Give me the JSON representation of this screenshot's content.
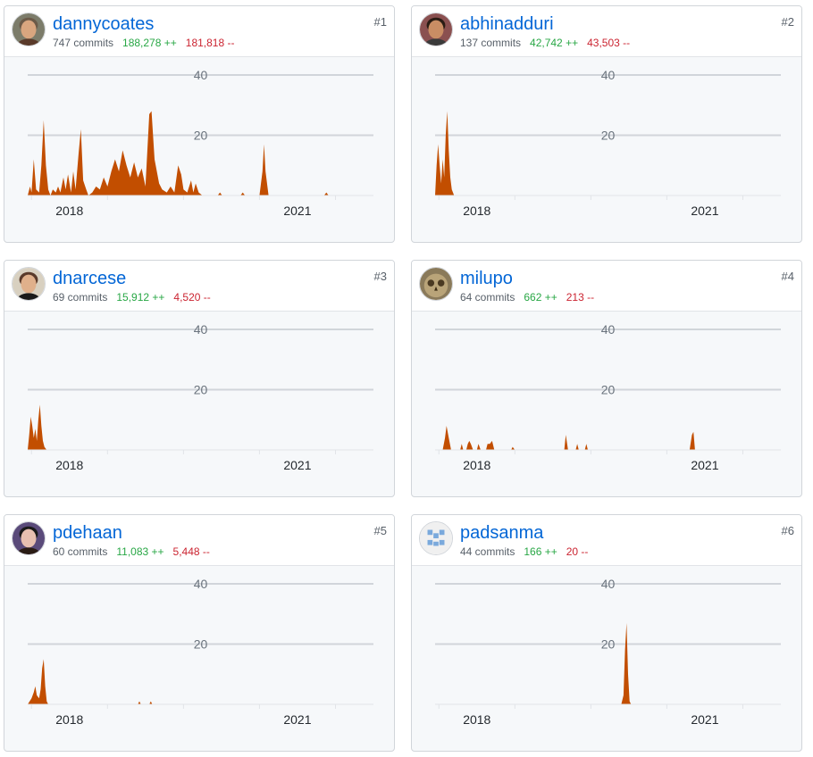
{
  "colors": {
    "area": "#c24e00",
    "link": "#0366d6",
    "additions": "#28a745",
    "deletions": "#cb2431"
  },
  "contributors": [
    {
      "rank": "#1",
      "name": "dannycoates",
      "commits": "747 commits",
      "additions": "188,278 ++",
      "deletions": "181,818 --",
      "avatar": "person-photo"
    },
    {
      "rank": "#2",
      "name": "abhinadduri",
      "commits": "137 commits",
      "additions": "42,742 ++",
      "deletions": "43,503 --",
      "avatar": "person-photo"
    },
    {
      "rank": "#3",
      "name": "dnarcese",
      "commits": "69 commits",
      "additions": "15,912 ++",
      "deletions": "4,520 --",
      "avatar": "person-photo"
    },
    {
      "rank": "#4",
      "name": "milupo",
      "commits": "64 commits",
      "additions": "662 ++",
      "deletions": "213 --",
      "avatar": "owl-photo"
    },
    {
      "rank": "#5",
      "name": "pdehaan",
      "commits": "60 commits",
      "additions": "11,083 ++",
      "deletions": "5,448 --",
      "avatar": "person-photo"
    },
    {
      "rank": "#6",
      "name": "padsanma",
      "commits": "44 commits",
      "additions": "166 ++",
      "deletions": "20 --",
      "avatar": "identicon"
    }
  ],
  "chart_data": [
    {
      "type": "area",
      "series": [
        {
          "values": [
            [
              2017.45,
              0
            ],
            [
              2017.48,
              3
            ],
            [
              2017.5,
              1
            ],
            [
              2017.53,
              12
            ],
            [
              2017.56,
              2
            ],
            [
              2017.6,
              1
            ],
            [
              2017.63,
              10
            ],
            [
              2017.66,
              25
            ],
            [
              2017.69,
              10
            ],
            [
              2017.72,
              2
            ],
            [
              2017.75,
              0
            ],
            [
              2017.78,
              2
            ],
            [
              2017.82,
              1
            ],
            [
              2017.85,
              3
            ],
            [
              2017.88,
              1
            ],
            [
              2017.92,
              6
            ],
            [
              2017.95,
              2
            ],
            [
              2017.98,
              7
            ],
            [
              2018.02,
              1
            ],
            [
              2018.05,
              8
            ],
            [
              2018.08,
              2
            ],
            [
              2018.12,
              14
            ],
            [
              2018.15,
              22
            ],
            [
              2018.18,
              5
            ],
            [
              2018.22,
              2
            ],
            [
              2018.25,
              0
            ],
            [
              2018.3,
              1
            ],
            [
              2018.35,
              3
            ],
            [
              2018.4,
              2
            ],
            [
              2018.45,
              6
            ],
            [
              2018.5,
              3
            ],
            [
              2018.55,
              8
            ],
            [
              2018.6,
              12
            ],
            [
              2018.65,
              8
            ],
            [
              2018.7,
              15
            ],
            [
              2018.75,
              10
            ],
            [
              2018.8,
              6
            ],
            [
              2018.85,
              11
            ],
            [
              2018.9,
              6
            ],
            [
              2018.95,
              9
            ],
            [
              2019.0,
              3
            ],
            [
              2019.05,
              27
            ],
            [
              2019.08,
              28
            ],
            [
              2019.12,
              12
            ],
            [
              2019.18,
              4
            ],
            [
              2019.22,
              2
            ],
            [
              2019.28,
              1
            ],
            [
              2019.33,
              3
            ],
            [
              2019.38,
              1
            ],
            [
              2019.43,
              10
            ],
            [
              2019.47,
              7
            ],
            [
              2019.5,
              2
            ],
            [
              2019.55,
              1
            ],
            [
              2019.6,
              5
            ],
            [
              2019.63,
              1
            ],
            [
              2019.66,
              4
            ],
            [
              2019.7,
              1
            ],
            [
              2019.75,
              0
            ],
            [
              2019.95,
              0
            ],
            [
              2019.98,
              1
            ],
            [
              2020.01,
              0
            ],
            [
              2020.25,
              0
            ],
            [
              2020.28,
              1
            ],
            [
              2020.31,
              0
            ],
            [
              2020.5,
              0
            ],
            [
              2020.54,
              8
            ],
            [
              2020.56,
              17
            ],
            [
              2020.58,
              8
            ],
            [
              2020.62,
              0
            ],
            [
              2021.35,
              0
            ],
            [
              2021.38,
              1
            ],
            [
              2021.41,
              0
            ],
            [
              2022.0,
              0
            ]
          ]
        }
      ],
      "xticks": [
        "2018",
        "2021"
      ],
      "yticks": [
        20,
        40
      ],
      "ylim": [
        0,
        40
      ]
    },
    {
      "type": "area",
      "series": [
        {
          "values": [
            [
              2017.45,
              0
            ],
            [
              2017.47,
              10
            ],
            [
              2017.49,
              17
            ],
            [
              2017.51,
              10
            ],
            [
              2017.53,
              4
            ],
            [
              2017.55,
              12
            ],
            [
              2017.57,
              6
            ],
            [
              2017.59,
              20
            ],
            [
              2017.61,
              28
            ],
            [
              2017.63,
              15
            ],
            [
              2017.65,
              6
            ],
            [
              2017.67,
              2
            ],
            [
              2017.7,
              0
            ],
            [
              2022.0,
              0
            ]
          ]
        }
      ],
      "xticks": [
        "2018",
        "2021"
      ],
      "yticks": [
        20,
        40
      ],
      "ylim": [
        0,
        40
      ]
    },
    {
      "type": "area",
      "series": [
        {
          "values": [
            [
              2017.45,
              0
            ],
            [
              2017.47,
              5
            ],
            [
              2017.49,
              11
            ],
            [
              2017.51,
              8
            ],
            [
              2017.53,
              4
            ],
            [
              2017.55,
              7
            ],
            [
              2017.57,
              3
            ],
            [
              2017.59,
              10
            ],
            [
              2017.61,
              15
            ],
            [
              2017.63,
              8
            ],
            [
              2017.65,
              3
            ],
            [
              2017.67,
              1
            ],
            [
              2017.7,
              0
            ],
            [
              2022.0,
              0
            ]
          ]
        }
      ],
      "xticks": [
        "2018",
        "2021"
      ],
      "yticks": [
        20,
        40
      ],
      "ylim": [
        0,
        40
      ]
    },
    {
      "type": "area",
      "series": [
        {
          "values": [
            [
              2017.55,
              0
            ],
            [
              2017.58,
              4
            ],
            [
              2017.6,
              8
            ],
            [
              2017.63,
              4
            ],
            [
              2017.66,
              0
            ],
            [
              2017.78,
              0
            ],
            [
              2017.8,
              2
            ],
            [
              2017.82,
              0
            ],
            [
              2017.86,
              0
            ],
            [
              2017.88,
              2
            ],
            [
              2017.9,
              3
            ],
            [
              2017.92,
              2
            ],
            [
              2017.95,
              0
            ],
            [
              2018.0,
              0
            ],
            [
              2018.02,
              2
            ],
            [
              2018.05,
              0
            ],
            [
              2018.12,
              0
            ],
            [
              2018.14,
              2
            ],
            [
              2018.17,
              2
            ],
            [
              2018.2,
              3
            ],
            [
              2018.23,
              0
            ],
            [
              2018.45,
              0
            ],
            [
              2018.47,
              1
            ],
            [
              2018.5,
              0
            ],
            [
              2019.15,
              0
            ],
            [
              2019.17,
              5
            ],
            [
              2019.2,
              0
            ],
            [
              2019.3,
              0
            ],
            [
              2019.32,
              2
            ],
            [
              2019.34,
              0
            ],
            [
              2019.42,
              0
            ],
            [
              2019.44,
              2
            ],
            [
              2019.46,
              0
            ],
            [
              2020.8,
              0
            ],
            [
              2020.83,
              5
            ],
            [
              2020.85,
              6
            ],
            [
              2020.87,
              0
            ],
            [
              2022.0,
              0
            ]
          ]
        }
      ],
      "xticks": [
        "2018",
        "2021"
      ],
      "yticks": [
        20,
        40
      ],
      "ylim": [
        0,
        40
      ]
    },
    {
      "type": "area",
      "series": [
        {
          "values": [
            [
              2017.45,
              0
            ],
            [
              2017.5,
              2
            ],
            [
              2017.53,
              4
            ],
            [
              2017.55,
              6
            ],
            [
              2017.57,
              3
            ],
            [
              2017.6,
              2
            ],
            [
              2017.62,
              5
            ],
            [
              2017.64,
              12
            ],
            [
              2017.66,
              15
            ],
            [
              2017.68,
              6
            ],
            [
              2017.7,
              1
            ],
            [
              2017.72,
              0
            ],
            [
              2018.9,
              0
            ],
            [
              2018.92,
              1
            ],
            [
              2018.94,
              0
            ],
            [
              2019.05,
              0
            ],
            [
              2019.07,
              1
            ],
            [
              2019.09,
              0
            ],
            [
              2022.0,
              0
            ]
          ]
        }
      ],
      "xticks": [
        "2018",
        "2021"
      ],
      "yticks": [
        20,
        40
      ],
      "ylim": [
        0,
        40
      ]
    },
    {
      "type": "area",
      "series": [
        {
          "values": [
            [
              2019.9,
              0
            ],
            [
              2019.93,
              3
            ],
            [
              2019.95,
              18
            ],
            [
              2019.97,
              27
            ],
            [
              2019.99,
              10
            ],
            [
              2020.01,
              1
            ],
            [
              2020.03,
              0
            ],
            [
              2022.0,
              0
            ]
          ]
        }
      ],
      "xticks": [
        "2018",
        "2021"
      ],
      "yticks": [
        20,
        40
      ],
      "ylim": [
        0,
        40
      ]
    }
  ]
}
